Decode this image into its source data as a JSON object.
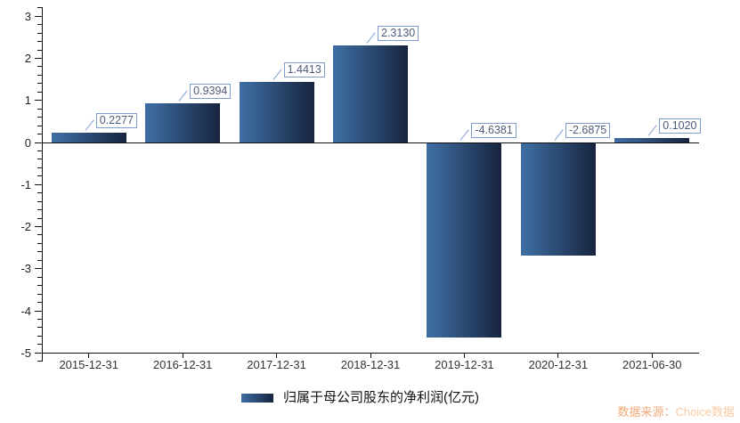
{
  "chart_data": {
    "type": "bar",
    "title": "",
    "categories": [
      "2015-12-31",
      "2016-12-31",
      "2017-12-31",
      "2018-12-31",
      "2019-12-31",
      "2020-12-31",
      "2021-06-30"
    ],
    "values": [
      0.2277,
      0.9394,
      1.4413,
      2.313,
      -4.6381,
      -2.6875,
      0.102
    ],
    "data_labels": [
      "0.2277",
      "0.9394",
      "1.4413",
      "2.3130",
      "-4.6381",
      "-2.6875",
      "0.1020"
    ],
    "series_name": "归属于母公司股东的净利润(亿元)",
    "xlabel": "",
    "ylabel": "",
    "ylim": [
      -5,
      3
    ],
    "y_major_ticks": [
      3,
      2,
      1,
      0,
      -1,
      -2,
      -3,
      -4,
      -5
    ],
    "y_minor_step": 0.2,
    "grid": false,
    "legend_position": "bottom",
    "bar_gradient": [
      "#3C6A9E",
      "#1B2A45"
    ],
    "label_box_border": "#7C9CCE",
    "label_text_color": "#4E5A78"
  },
  "legend": {
    "label": "归属于母公司股东的净利润(亿元)"
  },
  "source": {
    "prefix": "数据来源：",
    "name": "Choice数据"
  }
}
